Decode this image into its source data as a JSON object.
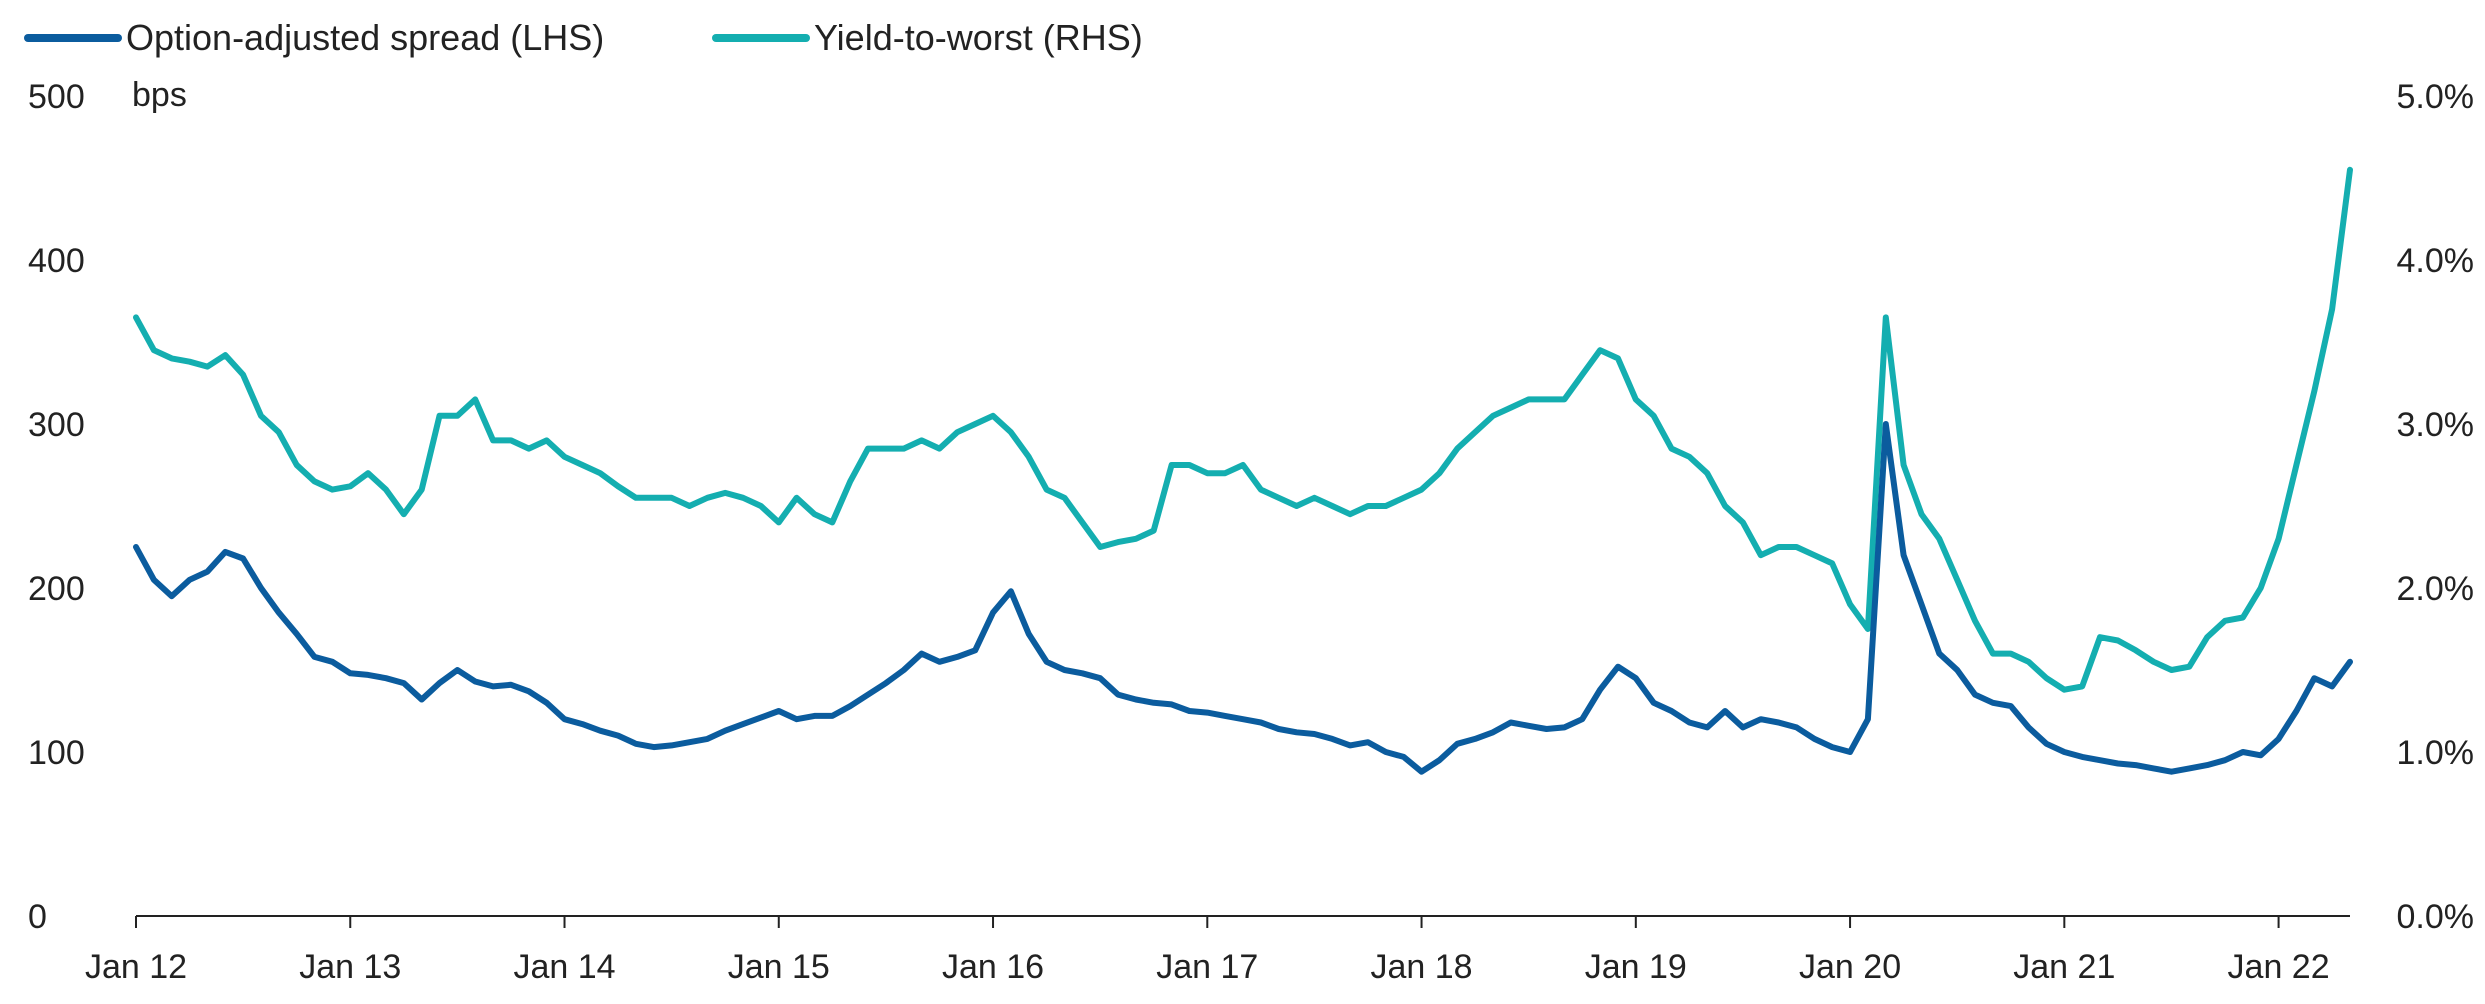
{
  "colors": {
    "oas": "#0b5c9e",
    "ytw": "#14aeb0",
    "axis": "#222222",
    "text": "#222222"
  },
  "legend": {
    "oas_label": "Option-adjusted spread (LHS)",
    "ytw_label": "Yield-to-worst (RHS)"
  },
  "chart_data": {
    "type": "line",
    "legend_position": "top-left",
    "grid": false,
    "ylabel": "bps",
    "y_left": {
      "range": [
        0,
        500
      ],
      "ticks": [
        "0",
        "100",
        "200",
        "300",
        "400",
        "500"
      ]
    },
    "y_right": {
      "range": [
        0,
        5
      ],
      "ticks": [
        "0.0%",
        "1.0%",
        "2.0%",
        "3.0%",
        "4.0%",
        "5.0%"
      ]
    },
    "x_range": [
      "2012-01",
      "2022-05"
    ],
    "x_ticks": [
      {
        "date": "2012-01",
        "label": "Jan 12"
      },
      {
        "date": "2013-01",
        "label": "Jan 13"
      },
      {
        "date": "2014-01",
        "label": "Jan 14"
      },
      {
        "date": "2015-01",
        "label": "Jan 15"
      },
      {
        "date": "2016-01",
        "label": "Jan 16"
      },
      {
        "date": "2017-01",
        "label": "Jan 17"
      },
      {
        "date": "2018-01",
        "label": "Jan 18"
      },
      {
        "date": "2019-01",
        "label": "Jan 19"
      },
      {
        "date": "2020-01",
        "label": "Jan 20"
      },
      {
        "date": "2021-01",
        "label": "Jan 21"
      },
      {
        "date": "2022-01",
        "label": "Jan 22"
      }
    ],
    "series": [
      {
        "name": "Option-adjusted spread (LHS)",
        "axis": "left",
        "points": [
          [
            "2012-01",
            225
          ],
          [
            "2012-02",
            205
          ],
          [
            "2012-03",
            195
          ],
          [
            "2012-04",
            205
          ],
          [
            "2012-05",
            210
          ],
          [
            "2012-06",
            222
          ],
          [
            "2012-07",
            218
          ],
          [
            "2012-08",
            200
          ],
          [
            "2012-09",
            185
          ],
          [
            "2012-10",
            172
          ],
          [
            "2012-11",
            158
          ],
          [
            "2012-12",
            155
          ],
          [
            "2013-01",
            148
          ],
          [
            "2013-02",
            147
          ],
          [
            "2013-03",
            145
          ],
          [
            "2013-04",
            142
          ],
          [
            "2013-05",
            132
          ],
          [
            "2013-06",
            142
          ],
          [
            "2013-07",
            150
          ],
          [
            "2013-08",
            143
          ],
          [
            "2013-09",
            140
          ],
          [
            "2013-10",
            141
          ],
          [
            "2013-11",
            137
          ],
          [
            "2013-12",
            130
          ],
          [
            "2014-01",
            120
          ],
          [
            "2014-02",
            117
          ],
          [
            "2014-03",
            113
          ],
          [
            "2014-04",
            110
          ],
          [
            "2014-05",
            105
          ],
          [
            "2014-06",
            103
          ],
          [
            "2014-07",
            104
          ],
          [
            "2014-08",
            106
          ],
          [
            "2014-09",
            108
          ],
          [
            "2014-10",
            113
          ],
          [
            "2014-11",
            117
          ],
          [
            "2014-12",
            121
          ],
          [
            "2015-01",
            125
          ],
          [
            "2015-02",
            120
          ],
          [
            "2015-03",
            122
          ],
          [
            "2015-04",
            122
          ],
          [
            "2015-05",
            128
          ],
          [
            "2015-06",
            135
          ],
          [
            "2015-07",
            142
          ],
          [
            "2015-08",
            150
          ],
          [
            "2015-09",
            160
          ],
          [
            "2015-10",
            155
          ],
          [
            "2015-11",
            158
          ],
          [
            "2015-12",
            162
          ],
          [
            "2016-01",
            185
          ],
          [
            "2016-02",
            198
          ],
          [
            "2016-03",
            172
          ],
          [
            "2016-04",
            155
          ],
          [
            "2016-05",
            150
          ],
          [
            "2016-06",
            148
          ],
          [
            "2016-07",
            145
          ],
          [
            "2016-08",
            135
          ],
          [
            "2016-09",
            132
          ],
          [
            "2016-10",
            130
          ],
          [
            "2016-11",
            129
          ],
          [
            "2016-12",
            125
          ],
          [
            "2017-01",
            124
          ],
          [
            "2017-02",
            122
          ],
          [
            "2017-03",
            120
          ],
          [
            "2017-04",
            118
          ],
          [
            "2017-05",
            114
          ],
          [
            "2017-06",
            112
          ],
          [
            "2017-07",
            111
          ],
          [
            "2017-08",
            108
          ],
          [
            "2017-09",
            104
          ],
          [
            "2017-10",
            106
          ],
          [
            "2017-11",
            100
          ],
          [
            "2017-12",
            97
          ],
          [
            "2018-01",
            88
          ],
          [
            "2018-02",
            95
          ],
          [
            "2018-03",
            105
          ],
          [
            "2018-04",
            108
          ],
          [
            "2018-05",
            112
          ],
          [
            "2018-06",
            118
          ],
          [
            "2018-07",
            116
          ],
          [
            "2018-08",
            114
          ],
          [
            "2018-09",
            115
          ],
          [
            "2018-10",
            120
          ],
          [
            "2018-11",
            138
          ],
          [
            "2018-12",
            152
          ],
          [
            "2019-01",
            145
          ],
          [
            "2019-02",
            130
          ],
          [
            "2019-03",
            125
          ],
          [
            "2019-04",
            118
          ],
          [
            "2019-05",
            115
          ],
          [
            "2019-06",
            125
          ],
          [
            "2019-07",
            115
          ],
          [
            "2019-08",
            120
          ],
          [
            "2019-09",
            118
          ],
          [
            "2019-10",
            115
          ],
          [
            "2019-11",
            108
          ],
          [
            "2019-12",
            103
          ],
          [
            "2020-01",
            100
          ],
          [
            "2020-02",
            120
          ],
          [
            "2020-03",
            300
          ],
          [
            "2020-04",
            220
          ],
          [
            "2020-05",
            190
          ],
          [
            "2020-06",
            160
          ],
          [
            "2020-07",
            150
          ],
          [
            "2020-08",
            135
          ],
          [
            "2020-09",
            130
          ],
          [
            "2020-10",
            128
          ],
          [
            "2020-11",
            115
          ],
          [
            "2020-12",
            105
          ],
          [
            "2021-01",
            100
          ],
          [
            "2021-02",
            97
          ],
          [
            "2021-03",
            95
          ],
          [
            "2021-04",
            93
          ],
          [
            "2021-05",
            92
          ],
          [
            "2021-06",
            90
          ],
          [
            "2021-07",
            88
          ],
          [
            "2021-08",
            90
          ],
          [
            "2021-09",
            92
          ],
          [
            "2021-10",
            95
          ],
          [
            "2021-11",
            100
          ],
          [
            "2021-12",
            98
          ],
          [
            "2022-01",
            108
          ],
          [
            "2022-02",
            125
          ],
          [
            "2022-03",
            145
          ],
          [
            "2022-04",
            140
          ],
          [
            "2022-05",
            155
          ]
        ]
      },
      {
        "name": "Yield-to-worst (RHS)",
        "axis": "right",
        "points": [
          [
            "2012-01",
            3.65
          ],
          [
            "2012-02",
            3.45
          ],
          [
            "2012-03",
            3.4
          ],
          [
            "2012-04",
            3.38
          ],
          [
            "2012-05",
            3.35
          ],
          [
            "2012-06",
            3.42
          ],
          [
            "2012-07",
            3.3
          ],
          [
            "2012-08",
            3.05
          ],
          [
            "2012-09",
            2.95
          ],
          [
            "2012-10",
            2.75
          ],
          [
            "2012-11",
            2.65
          ],
          [
            "2012-12",
            2.6
          ],
          [
            "2013-01",
            2.62
          ],
          [
            "2013-02",
            2.7
          ],
          [
            "2013-03",
            2.6
          ],
          [
            "2013-04",
            2.45
          ],
          [
            "2013-05",
            2.6
          ],
          [
            "2013-06",
            3.05
          ],
          [
            "2013-07",
            3.05
          ],
          [
            "2013-08",
            3.15
          ],
          [
            "2013-09",
            2.9
          ],
          [
            "2013-10",
            2.9
          ],
          [
            "2013-11",
            2.85
          ],
          [
            "2013-12",
            2.9
          ],
          [
            "2014-01",
            2.8
          ],
          [
            "2014-02",
            2.75
          ],
          [
            "2014-03",
            2.7
          ],
          [
            "2014-04",
            2.62
          ],
          [
            "2014-05",
            2.55
          ],
          [
            "2014-06",
            2.55
          ],
          [
            "2014-07",
            2.55
          ],
          [
            "2014-08",
            2.5
          ],
          [
            "2014-09",
            2.55
          ],
          [
            "2014-10",
            2.58
          ],
          [
            "2014-11",
            2.55
          ],
          [
            "2014-12",
            2.5
          ],
          [
            "2015-01",
            2.4
          ],
          [
            "2015-02",
            2.55
          ],
          [
            "2015-03",
            2.45
          ],
          [
            "2015-04",
            2.4
          ],
          [
            "2015-05",
            2.65
          ],
          [
            "2015-06",
            2.85
          ],
          [
            "2015-07",
            2.85
          ],
          [
            "2015-08",
            2.85
          ],
          [
            "2015-09",
            2.9
          ],
          [
            "2015-10",
            2.85
          ],
          [
            "2015-11",
            2.95
          ],
          [
            "2015-12",
            3.0
          ],
          [
            "2016-01",
            3.05
          ],
          [
            "2016-02",
            2.95
          ],
          [
            "2016-03",
            2.8
          ],
          [
            "2016-04",
            2.6
          ],
          [
            "2016-05",
            2.55
          ],
          [
            "2016-06",
            2.4
          ],
          [
            "2016-07",
            2.25
          ],
          [
            "2016-08",
            2.28
          ],
          [
            "2016-09",
            2.3
          ],
          [
            "2016-10",
            2.35
          ],
          [
            "2016-11",
            2.75
          ],
          [
            "2016-12",
            2.75
          ],
          [
            "2017-01",
            2.7
          ],
          [
            "2017-02",
            2.7
          ],
          [
            "2017-03",
            2.75
          ],
          [
            "2017-04",
            2.6
          ],
          [
            "2017-05",
            2.55
          ],
          [
            "2017-06",
            2.5
          ],
          [
            "2017-07",
            2.55
          ],
          [
            "2017-08",
            2.5
          ],
          [
            "2017-09",
            2.45
          ],
          [
            "2017-10",
            2.5
          ],
          [
            "2017-11",
            2.5
          ],
          [
            "2017-12",
            2.55
          ],
          [
            "2018-01",
            2.6
          ],
          [
            "2018-02",
            2.7
          ],
          [
            "2018-03",
            2.85
          ],
          [
            "2018-04",
            2.95
          ],
          [
            "2018-05",
            3.05
          ],
          [
            "2018-06",
            3.1
          ],
          [
            "2018-07",
            3.15
          ],
          [
            "2018-08",
            3.15
          ],
          [
            "2018-09",
            3.15
          ],
          [
            "2018-10",
            3.3
          ],
          [
            "2018-11",
            3.45
          ],
          [
            "2018-12",
            3.4
          ],
          [
            "2019-01",
            3.15
          ],
          [
            "2019-02",
            3.05
          ],
          [
            "2019-03",
            2.85
          ],
          [
            "2019-04",
            2.8
          ],
          [
            "2019-05",
            2.7
          ],
          [
            "2019-06",
            2.5
          ],
          [
            "2019-07",
            2.4
          ],
          [
            "2019-08",
            2.2
          ],
          [
            "2019-09",
            2.25
          ],
          [
            "2019-10",
            2.25
          ],
          [
            "2019-11",
            2.2
          ],
          [
            "2019-12",
            2.15
          ],
          [
            "2020-01",
            1.9
          ],
          [
            "2020-02",
            1.75
          ],
          [
            "2020-03",
            3.65
          ],
          [
            "2020-04",
            2.75
          ],
          [
            "2020-05",
            2.45
          ],
          [
            "2020-06",
            2.3
          ],
          [
            "2020-07",
            2.05
          ],
          [
            "2020-08",
            1.8
          ],
          [
            "2020-09",
            1.6
          ],
          [
            "2020-10",
            1.6
          ],
          [
            "2020-11",
            1.55
          ],
          [
            "2020-12",
            1.45
          ],
          [
            "2021-01",
            1.38
          ],
          [
            "2021-02",
            1.4
          ],
          [
            "2021-03",
            1.7
          ],
          [
            "2021-04",
            1.68
          ],
          [
            "2021-05",
            1.62
          ],
          [
            "2021-06",
            1.55
          ],
          [
            "2021-07",
            1.5
          ],
          [
            "2021-08",
            1.52
          ],
          [
            "2021-09",
            1.7
          ],
          [
            "2021-10",
            1.8
          ],
          [
            "2021-11",
            1.82
          ],
          [
            "2021-12",
            2.0
          ],
          [
            "2022-01",
            2.3
          ],
          [
            "2022-02",
            2.75
          ],
          [
            "2022-03",
            3.2
          ],
          [
            "2022-04",
            3.7
          ],
          [
            "2022-05",
            4.55
          ]
        ]
      }
    ]
  }
}
